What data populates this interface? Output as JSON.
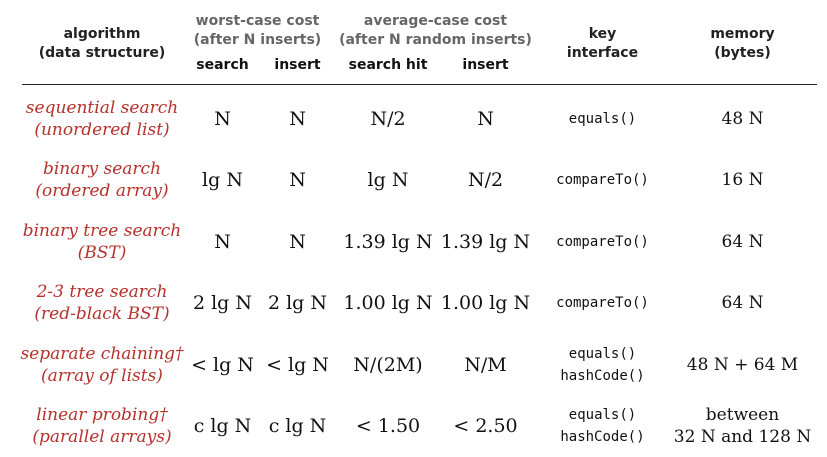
{
  "headers": {
    "algorithm": "algorithm",
    "data_structure": "(data structure)",
    "worst_case": "worst-case cost",
    "worst_case_sub": "(after N inserts)",
    "average_case": "average-case cost",
    "average_case_sub": "(after N random inserts)",
    "key": "key",
    "interface": "interface",
    "memory": "memory",
    "bytes": "(bytes)",
    "col_search": "search",
    "col_insert": "insert",
    "col_search_hit": "search hit",
    "col_insert_avg": "insert"
  },
  "rows": [
    {
      "alg1": "sequential search",
      "alg2": "(unordered list)",
      "worst_search": "N",
      "worst_insert": "N",
      "avg_hit": "N/2",
      "avg_insert": "N",
      "iface1": "equals()",
      "iface2": "",
      "mem1": "48 N",
      "mem2": ""
    },
    {
      "alg1": "binary search",
      "alg2": "(ordered array)",
      "worst_search": "lg N",
      "worst_insert": "N",
      "avg_hit": "lg N",
      "avg_insert": "N/2",
      "iface1": "compareTo()",
      "iface2": "",
      "mem1": "16 N",
      "mem2": ""
    },
    {
      "alg1": "binary tree search",
      "alg2": "(BST)",
      "worst_search": "N",
      "worst_insert": "N",
      "avg_hit": "1.39 lg N",
      "avg_insert": "1.39 lg N",
      "iface1": "compareTo()",
      "iface2": "",
      "mem1": "64 N",
      "mem2": ""
    },
    {
      "alg1": "2-3 tree search",
      "alg2": "(red-black BST)",
      "worst_search": "2 lg N",
      "worst_insert": "2 lg N",
      "avg_hit": "1.00 lg N",
      "avg_insert": "1.00 lg N",
      "iface1": "compareTo()",
      "iface2": "",
      "mem1": "64 N",
      "mem2": ""
    },
    {
      "alg1": "separate chaining†",
      "alg2": "(array of lists)",
      "worst_search": "< lg N",
      "worst_insert": "< lg N",
      "avg_hit": "N/(2M)",
      "avg_insert": "N/M",
      "iface1": "equals()",
      "iface2": "hashCode()",
      "mem1": "48 N + 64 M",
      "mem2": ""
    },
    {
      "alg1": "linear probing†",
      "alg2": "(parallel arrays)",
      "worst_search": "c lg N",
      "worst_insert": "c lg N",
      "avg_hit": "< 1.50",
      "avg_insert": "< 2.50",
      "iface1": "equals()",
      "iface2": "hashCode()",
      "mem1": "between",
      "mem2": "32 N and 128 N"
    }
  ]
}
